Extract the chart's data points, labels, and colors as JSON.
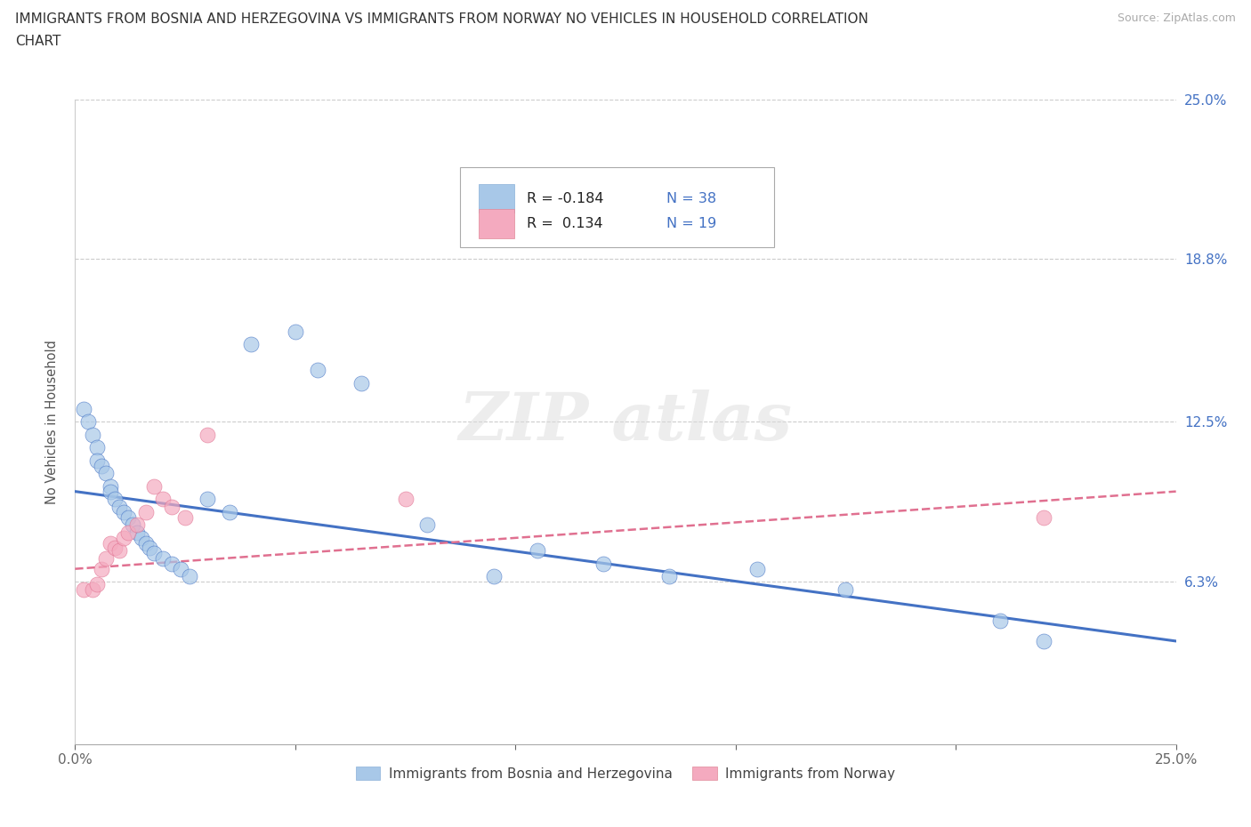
{
  "title_line1": "IMMIGRANTS FROM BOSNIA AND HERZEGOVINA VS IMMIGRANTS FROM NORWAY NO VEHICLES IN HOUSEHOLD CORRELATION",
  "title_line2": "CHART",
  "source": "Source: ZipAtlas.com",
  "ylabel": "No Vehicles in Household",
  "xlim": [
    0.0,
    0.25
  ],
  "ylim": [
    0.0,
    0.25
  ],
  "ytick_vals": [
    0.063,
    0.125,
    0.188,
    0.25
  ],
  "ytick_labels": [
    "6.3%",
    "12.5%",
    "18.8%",
    "25.0%"
  ],
  "r_bosnia": -0.184,
  "n_bosnia": 38,
  "r_norway": 0.134,
  "n_norway": 19,
  "color_bosnia": "#a8c8e8",
  "color_norway": "#f4aabf",
  "line_color_bosnia": "#4472c4",
  "line_color_norway": "#e07090",
  "bosnia_x": [
    0.002,
    0.003,
    0.004,
    0.005,
    0.005,
    0.006,
    0.007,
    0.008,
    0.008,
    0.009,
    0.01,
    0.011,
    0.012,
    0.013,
    0.014,
    0.015,
    0.016,
    0.017,
    0.018,
    0.02,
    0.022,
    0.024,
    0.026,
    0.03,
    0.035,
    0.04,
    0.05,
    0.055,
    0.065,
    0.08,
    0.095,
    0.105,
    0.12,
    0.135,
    0.155,
    0.175,
    0.21,
    0.22
  ],
  "bosnia_y": [
    0.13,
    0.125,
    0.12,
    0.115,
    0.11,
    0.108,
    0.105,
    0.1,
    0.098,
    0.095,
    0.092,
    0.09,
    0.088,
    0.085,
    0.082,
    0.08,
    0.078,
    0.076,
    0.074,
    0.072,
    0.07,
    0.068,
    0.065,
    0.095,
    0.09,
    0.155,
    0.16,
    0.145,
    0.14,
    0.085,
    0.065,
    0.075,
    0.07,
    0.065,
    0.068,
    0.06,
    0.048,
    0.04
  ],
  "norway_x": [
    0.002,
    0.004,
    0.005,
    0.006,
    0.007,
    0.008,
    0.009,
    0.01,
    0.011,
    0.012,
    0.014,
    0.016,
    0.018,
    0.02,
    0.022,
    0.025,
    0.03,
    0.075,
    0.22
  ],
  "norway_y": [
    0.06,
    0.06,
    0.062,
    0.068,
    0.072,
    0.078,
    0.076,
    0.075,
    0.08,
    0.082,
    0.085,
    0.09,
    0.1,
    0.095,
    0.092,
    0.088,
    0.12,
    0.095,
    0.088
  ],
  "blue_line_x0": 0.0,
  "blue_line_y0": 0.098,
  "blue_line_x1": 0.25,
  "blue_line_y1": 0.04,
  "pink_line_x0": 0.0,
  "pink_line_y0": 0.068,
  "pink_line_x1": 0.25,
  "pink_line_y1": 0.098
}
